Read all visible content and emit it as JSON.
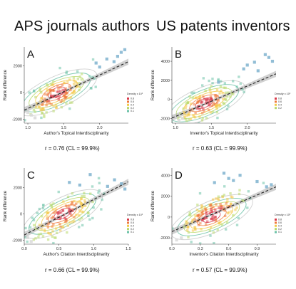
{
  "header": {
    "left_title": "APS journals authors",
    "right_title": "US patents inventors"
  },
  "legend_colors": [
    "#d83a4a",
    "#ef7a3c",
    "#f4c94a",
    "#b8d86a",
    "#6cc2a8"
  ],
  "chart_data": [
    {
      "panel": "A",
      "type": "scatter",
      "xlabel": "Author's Topical Interdisciplinarity",
      "ylabel": "Rank difference",
      "xlim": [
        0.95,
        2.4
      ],
      "ylim": [
        -2300,
        3400
      ],
      "xticks": [
        1.0,
        1.5,
        2.0
      ],
      "xtick_labels": [
        "1.0",
        "1.5",
        "2.0"
      ],
      "yticks": [
        -2000,
        0,
        2000
      ],
      "ytick_labels": [
        "-2000",
        "0",
        "2000"
      ],
      "fit": {
        "slope": 2500,
        "intercept": -3700
      },
      "center": [
        1.4,
        0
      ],
      "spread": [
        0.22,
        700
      ],
      "seed": 11,
      "outliers": [
        [
          2.3,
          3000
        ],
        [
          2.25,
          2700
        ],
        [
          2.1,
          2500
        ],
        [
          2.2,
          2300
        ],
        [
          1.95,
          2200
        ],
        [
          2.0,
          1900
        ],
        [
          1.05,
          -1700
        ],
        [
          1.1,
          -1900
        ],
        [
          1.0,
          -1500
        ],
        [
          2.35,
          3200
        ]
      ],
      "legend_title": "Density x 10²",
      "legend_items": [
        "0.8",
        "0.6",
        "0.4",
        "0.2",
        "0.1"
      ],
      "correlation": "r = 0.76 (CL = 99.9%)"
    },
    {
      "panel": "B",
      "type": "scatter",
      "xlabel": "Inventor's Topical Interdisciplinarity",
      "ylabel": "Rank difference",
      "xlim": [
        0.95,
        2.4
      ],
      "ylim": [
        -2500,
        5500
      ],
      "xticks": [
        1.0,
        1.5,
        2.0
      ],
      "xtick_labels": [
        "1.0",
        "1.5",
        "2.0"
      ],
      "yticks": [
        -2000,
        0,
        2000,
        4000
      ],
      "ytick_labels": [
        "-2000",
        "0",
        "2000",
        "4000"
      ],
      "fit": {
        "slope": 3200,
        "intercept": -5000
      },
      "center": [
        1.4,
        -400
      ],
      "spread": [
        0.22,
        900
      ],
      "seed": 23,
      "outliers": [
        [
          2.25,
          4700
        ],
        [
          2.3,
          4400
        ],
        [
          2.1,
          3900
        ],
        [
          2.0,
          3600
        ],
        [
          1.95,
          3200
        ],
        [
          2.15,
          3000
        ],
        [
          1.6,
          1800
        ],
        [
          1.1,
          -2000
        ],
        [
          1.05,
          -2200
        ],
        [
          2.35,
          4000
        ]
      ],
      "legend_title": "Density x 10²",
      "legend_items": [
        "0.8",
        "0.6",
        "0.4",
        "0.2"
      ],
      "correlation": "r = 0.63 (CL = 99.9%)"
    },
    {
      "panel": "C",
      "type": "scatter",
      "xlabel": "Author's Citation Interdisciplinarity",
      "ylabel": "Rank difference",
      "xlim": [
        0.0,
        1.5
      ],
      "ylim": [
        -2300,
        3500
      ],
      "xticks": [
        0.0,
        0.5,
        1.0,
        1.5
      ],
      "xtick_labels": [
        "0.0",
        "0.5",
        "1.0",
        "1.5"
      ],
      "yticks": [
        -2000,
        0,
        2000
      ],
      "ytick_labels": [
        "-2000",
        "0",
        "2000"
      ],
      "fit": {
        "slope": 2700,
        "intercept": -1600
      },
      "center": [
        0.55,
        0
      ],
      "spread": [
        0.25,
        800
      ],
      "seed": 37,
      "outliers": [
        [
          0.95,
          3000
        ],
        [
          1.3,
          2600
        ],
        [
          1.4,
          2300
        ],
        [
          1.2,
          2100
        ],
        [
          1.45,
          1900
        ],
        [
          0.65,
          2400
        ],
        [
          0.05,
          -1800
        ],
        [
          0.1,
          -2100
        ],
        [
          0.02,
          -1500
        ],
        [
          0.8,
          2200
        ]
      ],
      "legend_title": "Density x 10²",
      "legend_items": [
        "0.8",
        "0.6",
        "0.4",
        "0.2",
        "0.1"
      ],
      "correlation": "r = 0.66 (CL = 99.9%)"
    },
    {
      "panel": "D",
      "type": "scatter",
      "xlabel": "Inventor's Citation Interdisciplinarity",
      "ylabel": "Rank difference",
      "xlim": [
        0.0,
        1.1
      ],
      "ylim": [
        -2600,
        4700
      ],
      "xticks": [
        0.0,
        0.3,
        0.6,
        0.9
      ],
      "xtick_labels": [
        "0.0",
        "0.3",
        "0.6",
        "0.9"
      ],
      "yticks": [
        -2000,
        0,
        2000,
        4000
      ],
      "ytick_labels": [
        "-2000",
        "0",
        "2000",
        "4000"
      ],
      "fit": {
        "slope": 3900,
        "intercept": -1400
      },
      "center": [
        0.42,
        0
      ],
      "spread": [
        0.2,
        1000
      ],
      "seed": 53,
      "outliers": [
        [
          0.55,
          4200
        ],
        [
          0.6,
          3700
        ],
        [
          0.65,
          3500
        ],
        [
          0.72,
          4000
        ],
        [
          0.9,
          3400
        ],
        [
          1.0,
          2900
        ],
        [
          1.05,
          3100
        ],
        [
          0.05,
          -2200
        ],
        [
          0.1,
          -2000
        ],
        [
          0.45,
          3300
        ]
      ],
      "legend_title": "Density x 10²",
      "legend_items": [
        "0.8",
        "0.6",
        "0.4",
        "0.2",
        "0.1"
      ],
      "correlation": "r = 0.57 (CL = 99.9%)"
    }
  ]
}
